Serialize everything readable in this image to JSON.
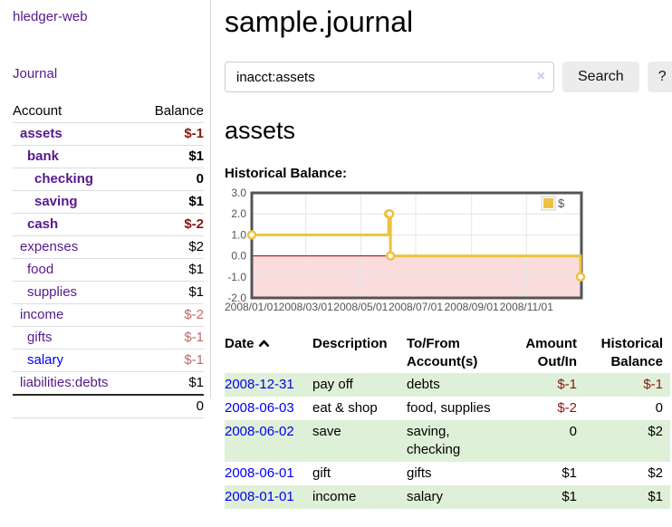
{
  "colors": {
    "accent_purple": "#551a8b",
    "link_blue": "#0000ee",
    "negative": "#8b1414",
    "negative_soft": "#bb6b6b",
    "row_stripe_green": "#dff0d8",
    "button_gray": "#ececec"
  },
  "sidebar": {
    "brand": "hledger-web",
    "nav_journal": "Journal",
    "accounts": {
      "header_account": "Account",
      "header_balance": "Balance",
      "rows": [
        {
          "label": "assets",
          "balance": "$-1",
          "indent": 0,
          "bold": true,
          "balance_class": "neg"
        },
        {
          "label": "bank",
          "balance": "$1",
          "indent": 1,
          "bold": true,
          "balance_class": ""
        },
        {
          "label": "checking",
          "balance": "0",
          "indent": 2,
          "bold": true,
          "balance_class": ""
        },
        {
          "label": "saving",
          "balance": "$1",
          "indent": 2,
          "bold": true,
          "balance_class": ""
        },
        {
          "label": "cash",
          "balance": "$-2",
          "indent": 1,
          "bold": true,
          "balance_class": "neg"
        },
        {
          "label": "expenses",
          "balance": "$2",
          "indent": 0,
          "bold": false,
          "balance_class": ""
        },
        {
          "label": "food",
          "balance": "$1",
          "indent": 1,
          "bold": false,
          "balance_class": ""
        },
        {
          "label": "supplies",
          "balance": "$1",
          "indent": 1,
          "bold": false,
          "balance_class": ""
        },
        {
          "label": "income",
          "balance": "$-2",
          "indent": 0,
          "bold": false,
          "balance_class": "negsoft"
        },
        {
          "label": "gifts",
          "balance": "$-1",
          "indent": 1,
          "bold": false,
          "balance_class": "negsoft"
        },
        {
          "label": "salary",
          "balance": "$-1",
          "indent": 1,
          "bold": false,
          "balance_class": "negsoft",
          "link_blue": true
        },
        {
          "label": "liabilities:debts",
          "balance": "$1",
          "indent": 0,
          "bold": false,
          "balance_class": ""
        }
      ],
      "total": "0"
    }
  },
  "main": {
    "title": "sample.journal",
    "search": {
      "value": "inacct:assets",
      "clear_icon": "×",
      "search_button": "Search",
      "help_button": "?"
    },
    "account_heading": "assets",
    "chart_label": "Historical Balance:"
  },
  "chart_data": {
    "type": "line",
    "title": "Historical Balance",
    "step": true,
    "x_range": [
      "2008-01-01",
      "2009-01-01"
    ],
    "y_range": [
      -2,
      3
    ],
    "y_ticks": [
      "3.0",
      "2.0",
      "1.0",
      "0.0",
      "-1.0",
      "-2.0"
    ],
    "y_tick_values": [
      3,
      2,
      1,
      0,
      -1,
      -2
    ],
    "x_ticks": [
      "2008/01/01",
      "2008/03/01",
      "2008/05/01",
      "2008/07/01",
      "2008/09/01",
      "2008/11/01"
    ],
    "series": [
      {
        "name": "$",
        "points": [
          [
            "2008-01-01",
            1
          ],
          [
            "2008-06-01",
            2
          ],
          [
            "2008-06-02",
            2
          ],
          [
            "2008-06-03",
            0
          ],
          [
            "2008-12-31",
            -1
          ]
        ]
      }
    ],
    "legend": {
      "position": "top-right",
      "label": "$",
      "swatch_color": "#edc240"
    },
    "style": {
      "line_color": "#edc240",
      "marker_fill": "#ffffff",
      "negative_fill": "#fbdcdc",
      "zero_line": "#8b0000",
      "border": "#545454",
      "grid": "#e6e6e6",
      "tick_text": "#545454"
    }
  },
  "register": {
    "headers": {
      "date": "Date",
      "description": "Description",
      "accounts": "To/From Account(s)",
      "amount": "Amount Out/In",
      "balance": "Historical Balance"
    },
    "rows": [
      {
        "date": "2008-12-31",
        "description": "pay off",
        "accounts": "debts",
        "amount": "$-1",
        "amount_class": "neg",
        "balance": "$-1",
        "balance_class": "neg"
      },
      {
        "date": "2008-06-03",
        "description": "eat & shop",
        "accounts": "food, supplies",
        "amount": "$-2",
        "amount_class": "neg",
        "balance": "0",
        "balance_class": ""
      },
      {
        "date": "2008-06-02",
        "description": "save",
        "accounts": "saving, checking",
        "amount": "0",
        "amount_class": "",
        "balance": "$2",
        "balance_class": ""
      },
      {
        "date": "2008-06-01",
        "description": "gift",
        "accounts": "gifts",
        "amount": "$1",
        "amount_class": "",
        "balance": "$2",
        "balance_class": ""
      },
      {
        "date": "2008-01-01",
        "description": "income",
        "accounts": "salary",
        "amount": "$1",
        "amount_class": "",
        "balance": "$1",
        "balance_class": ""
      }
    ]
  }
}
